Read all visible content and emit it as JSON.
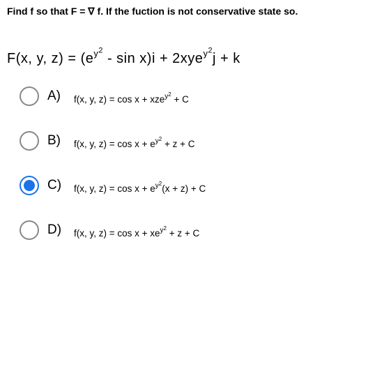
{
  "title": "Find f so that F = ∇ f. If the fuction is not conservative state so.",
  "formula": {
    "lhs": "F(x, y, z) = (e",
    "exp1_base": "y",
    "exp1_pow": "2",
    "mid1": " - sin x)i + 2xye",
    "exp2_base": "y",
    "exp2_pow": "2",
    "tail": "j + k"
  },
  "options": [
    {
      "key": "A",
      "label": "A)",
      "selected": false,
      "pre": "f(x, y, z) = cos x + xze",
      "exp_base": "y",
      "exp_pow": "2",
      "post": " + C"
    },
    {
      "key": "B",
      "label": "B)",
      "selected": false,
      "pre": "f(x, y, z) = cos x + e",
      "exp_base": "y",
      "exp_pow": "2",
      "post": " + z + C"
    },
    {
      "key": "C",
      "label": "C)",
      "selected": true,
      "pre": "f(x, y, z) = cos x + e",
      "exp_base": "y",
      "exp_pow": "2",
      "post": "(x + z) + C"
    },
    {
      "key": "D",
      "label": "D)",
      "selected": false,
      "pre": "f(x, y, z) = cos x + xe",
      "exp_base": "y",
      "exp_pow": "2",
      "post": " + z + C"
    }
  ],
  "colors": {
    "text": "#000000",
    "radio_border": "#888888",
    "radio_selected": "#1a73e8",
    "background": "#ffffff"
  },
  "fontsizes": {
    "title": 14,
    "formula": 20,
    "option_label": 19,
    "option_expr": 13.5
  }
}
